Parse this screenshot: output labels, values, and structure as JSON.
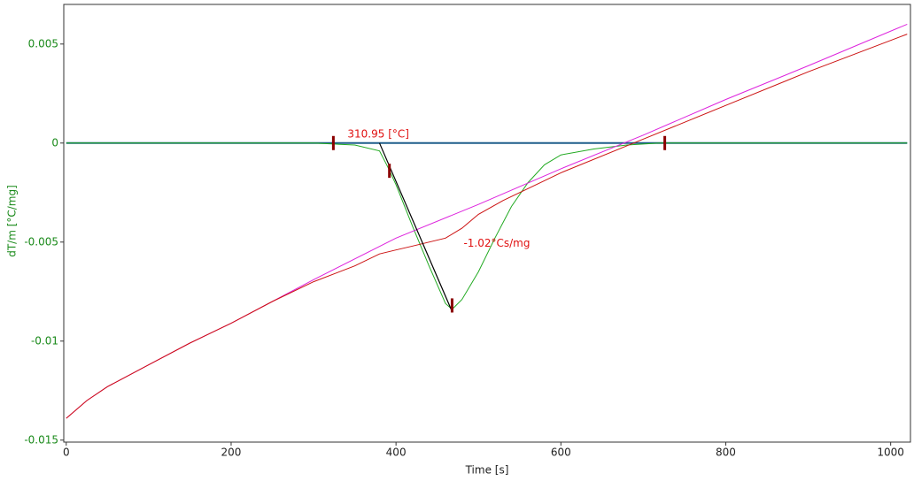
{
  "chart_data": {
    "type": "line",
    "x_label": "Time [s]",
    "y_label": "dT/m  [°C/mg]",
    "xlim": [
      -3,
      1024
    ],
    "ylim": [
      -0.0151,
      0.007
    ],
    "xticks": [
      0,
      200,
      400,
      600,
      800,
      1000
    ],
    "yticks": [
      0.005,
      0,
      -0.005,
      -0.01,
      -0.015
    ],
    "grid": false,
    "series": [
      {
        "color": "#1f5f8b",
        "x": [
          0,
          1020
        ],
        "values": [
          0,
          0
        ]
      },
      {
        "color": "#22aa22",
        "x": [
          0,
          300,
          350,
          380,
          390,
          400,
          420,
          440,
          460,
          468,
          480,
          500,
          520,
          540,
          560,
          580,
          600,
          640,
          680,
          720,
          1020
        ],
        "values": [
          0,
          0,
          -0.0001,
          -0.0004,
          -0.0012,
          -0.0021,
          -0.0042,
          -0.0062,
          -0.0081,
          -0.0084,
          -0.0079,
          -0.0065,
          -0.0048,
          -0.0032,
          -0.002,
          -0.0011,
          -0.0006,
          -0.0003,
          -0.0001,
          0,
          0
        ]
      },
      {
        "color": "#dd22dd",
        "x": [
          0,
          25,
          50,
          100,
          150,
          200,
          250,
          300,
          400,
          500,
          600,
          700,
          800,
          900,
          1020
        ],
        "values": [
          -0.0139,
          -0.013,
          -0.0123,
          -0.0112,
          -0.0101,
          -0.0091,
          -0.008,
          -0.0069,
          -0.0048,
          -0.0031,
          -0.0013,
          0.0004,
          0.0022,
          0.0039,
          0.006
        ]
      },
      {
        "color": "#cc1111",
        "x": [
          0,
          25,
          50,
          100,
          150,
          200,
          250,
          300,
          350,
          380,
          400,
          420,
          440,
          460,
          480,
          500,
          530,
          560,
          600,
          700,
          800,
          900,
          1020
        ],
        "values": [
          -0.0139,
          -0.013,
          -0.0123,
          -0.0112,
          -0.0101,
          -0.0091,
          -0.008,
          -0.007,
          -0.0062,
          -0.0056,
          -0.0054,
          -0.0052,
          -0.005,
          -0.0048,
          -0.0043,
          -0.0036,
          -0.0029,
          -0.0023,
          -0.0015,
          0.0002,
          0.0019,
          0.0036,
          0.0055
        ]
      }
    ],
    "tangent": {
      "color": "#000000",
      "x": [
        380,
        468
      ],
      "values": [
        0,
        -0.0085
      ]
    },
    "markers": {
      "color": "#8b0000",
      "x": [
        324,
        392,
        468,
        726
      ],
      "values": [
        0,
        -0.0014,
        -0.0082,
        0
      ]
    },
    "annotations": [
      {
        "text": "310.95 [°C]",
        "color": "#e01010"
      },
      {
        "text": "-1.02°Cs/mg",
        "color": "#e01010"
      }
    ]
  }
}
